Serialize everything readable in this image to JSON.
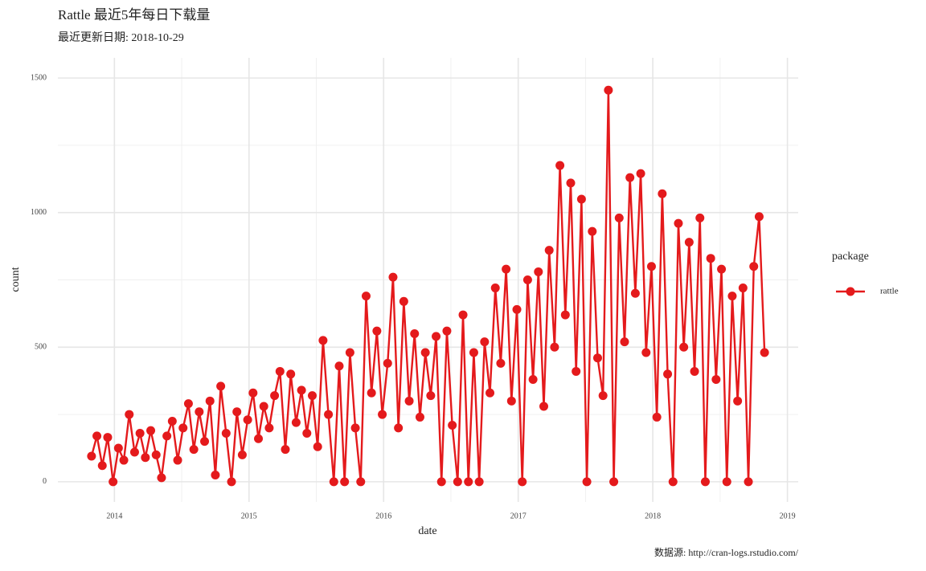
{
  "chart_data": {
    "type": "line",
    "title": "Rattle 最近5年每日下载量",
    "subtitle": "最近更新日期: 2018-10-29",
    "caption": "数据源: http://cran-logs.rstudio.com/",
    "xlabel": "date",
    "ylabel": "count",
    "legend_title": "package",
    "legend": "right",
    "grid": true,
    "minor_grid": true,
    "xlim": [
      2013.58,
      2019.08
    ],
    "xticks": [
      2014,
      2015,
      2016,
      2017,
      2018,
      2019
    ],
    "ylim": [
      -75,
      1575
    ],
    "yticks": [
      0,
      500,
      1000,
      1500
    ],
    "x": [
      2013.83,
      2013.87,
      2013.91,
      2013.95,
      2013.99,
      2014.03,
      2014.07,
      2014.11,
      2014.15,
      2014.19,
      2014.23,
      2014.27,
      2014.31,
      2014.35,
      2014.39,
      2014.43,
      2014.47,
      2014.51,
      2014.55,
      2014.59,
      2014.63,
      2014.67,
      2014.71,
      2014.75,
      2014.79,
      2014.83,
      2014.87,
      2014.91,
      2014.95,
      2014.99,
      2015.03,
      2015.07,
      2015.11,
      2015.15,
      2015.19,
      2015.23,
      2015.27,
      2015.31,
      2015.35,
      2015.39,
      2015.43,
      2015.47,
      2015.51,
      2015.55,
      2015.59,
      2015.63,
      2015.67,
      2015.71,
      2015.75,
      2015.79,
      2015.83,
      2015.87,
      2015.91,
      2015.95,
      2015.99,
      2016.03,
      2016.07,
      2016.11,
      2016.15,
      2016.19,
      2016.23,
      2016.27,
      2016.31,
      2016.35,
      2016.39,
      2016.43,
      2016.47,
      2016.51,
      2016.55,
      2016.59,
      2016.63,
      2016.67,
      2016.71,
      2016.75,
      2016.79,
      2016.83,
      2016.87,
      2016.91,
      2016.95,
      2016.99,
      2017.03,
      2017.07,
      2017.11,
      2017.15,
      2017.19,
      2017.23,
      2017.27,
      2017.31,
      2017.35,
      2017.39,
      2017.43,
      2017.47,
      2017.51,
      2017.55,
      2017.59,
      2017.63,
      2017.67,
      2017.71,
      2017.75,
      2017.79,
      2017.83,
      2017.87,
      2017.91,
      2017.95,
      2017.99,
      2018.03,
      2018.07,
      2018.11,
      2018.15,
      2018.19,
      2018.23,
      2018.27,
      2018.31,
      2018.35,
      2018.39,
      2018.43,
      2018.47,
      2018.51,
      2018.55,
      2018.59,
      2018.63,
      2018.67,
      2018.71,
      2018.75,
      2018.79,
      2018.83
    ],
    "series": [
      {
        "name": "rattle",
        "color": "#e41a1c",
        "values": [
          95,
          170,
          60,
          165,
          0,
          125,
          80,
          250,
          110,
          180,
          90,
          190,
          100,
          15,
          170,
          225,
          80,
          200,
          290,
          120,
          260,
          150,
          300,
          25,
          355,
          180,
          0,
          260,
          100,
          230,
          330,
          160,
          280,
          200,
          320,
          410,
          120,
          400,
          220,
          340,
          180,
          320,
          130,
          525,
          250,
          0,
          430,
          0,
          480,
          200,
          0,
          690,
          330,
          560,
          250,
          440,
          760,
          200,
          670,
          300,
          550,
          240,
          480,
          320,
          540,
          0,
          560,
          210,
          0,
          620,
          0,
          480,
          0,
          520,
          330,
          720,
          440,
          790,
          300,
          640,
          0,
          750,
          380,
          780,
          280,
          860,
          500,
          1175,
          620,
          1110,
          410,
          1050,
          0,
          930,
          460,
          320,
          1455,
          0,
          980,
          520,
          1130,
          700,
          1145,
          480,
          800,
          240,
          1070,
          400,
          0,
          960,
          500,
          890,
          410,
          980,
          0,
          830,
          380,
          790,
          0,
          690,
          300,
          720,
          0,
          800,
          985,
          480
        ]
      }
    ]
  }
}
